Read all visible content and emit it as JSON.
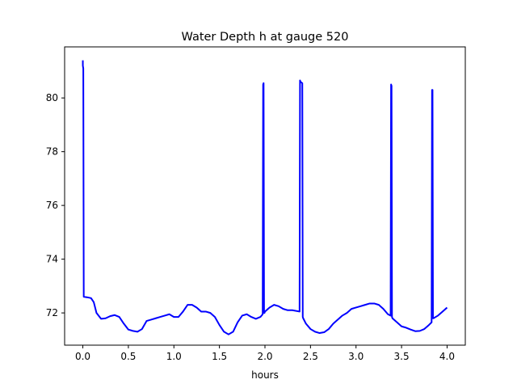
{
  "chart_data": {
    "type": "line",
    "title": "Water Depth h at gauge 520",
    "xlabel": "hours",
    "ylabel": "",
    "xlim": [
      -0.2,
      4.2
    ],
    "ylim": [
      70.8,
      81.9
    ],
    "xticks": [
      0.0,
      0.5,
      1.0,
      1.5,
      2.0,
      2.5,
      3.0,
      3.5,
      4.0
    ],
    "xtick_labels": [
      "0.0",
      "0.5",
      "1.0",
      "1.5",
      "2.0",
      "2.5",
      "3.0",
      "3.5",
      "4.0"
    ],
    "yticks": [
      72,
      74,
      76,
      78,
      80
    ],
    "ytick_labels": [
      "72",
      "74",
      "76",
      "78",
      "80"
    ],
    "grid": false,
    "series": [
      {
        "color": "#0000ff",
        "x": [
          0.0,
          0.0,
          0.005,
          0.01,
          0.01,
          0.05,
          0.09,
          0.12,
          0.15,
          0.2,
          0.25,
          0.3,
          0.35,
          0.4,
          0.45,
          0.5,
          0.55,
          0.6,
          0.65,
          0.7,
          0.75,
          0.8,
          0.85,
          0.9,
          0.95,
          1.0,
          1.05,
          1.1,
          1.15,
          1.2,
          1.25,
          1.3,
          1.35,
          1.4,
          1.45,
          1.5,
          1.55,
          1.6,
          1.65,
          1.7,
          1.75,
          1.8,
          1.85,
          1.9,
          1.95,
          1.975,
          1.98,
          1.985,
          1.99,
          1.995,
          2.0,
          2.05,
          2.1,
          2.15,
          2.2,
          2.25,
          2.3,
          2.38,
          2.385,
          2.39,
          2.41,
          2.415,
          2.42,
          2.45,
          2.5,
          2.55,
          2.6,
          2.65,
          2.7,
          2.75,
          2.8,
          2.85,
          2.9,
          2.95,
          3.0,
          3.05,
          3.1,
          3.15,
          3.2,
          3.25,
          3.3,
          3.35,
          3.38,
          3.385,
          3.39,
          3.395,
          3.4,
          3.45,
          3.5,
          3.55,
          3.6,
          3.65,
          3.7,
          3.75,
          3.8,
          3.83,
          3.835,
          3.84,
          3.845,
          3.85,
          3.9,
          3.95,
          4.0
        ],
        "values": [
          81.4,
          81.2,
          81.1,
          72.6,
          72.6,
          72.58,
          72.55,
          72.4,
          72.0,
          71.78,
          71.8,
          71.88,
          71.92,
          71.85,
          71.6,
          71.38,
          71.33,
          71.3,
          71.4,
          71.7,
          71.75,
          71.8,
          71.85,
          71.9,
          71.95,
          71.85,
          71.85,
          72.05,
          72.3,
          72.3,
          72.2,
          72.05,
          72.05,
          72.0,
          71.85,
          71.55,
          71.3,
          71.2,
          71.3,
          71.65,
          71.9,
          71.95,
          71.85,
          71.78,
          71.85,
          71.95,
          80.5,
          80.55,
          72.0,
          72.0,
          72.05,
          72.2,
          72.3,
          72.25,
          72.15,
          72.1,
          72.1,
          72.05,
          80.65,
          80.6,
          80.55,
          71.85,
          71.8,
          71.6,
          71.4,
          71.3,
          71.25,
          71.28,
          71.4,
          71.6,
          71.75,
          71.9,
          72.0,
          72.15,
          72.2,
          72.25,
          72.3,
          72.35,
          72.35,
          72.3,
          72.15,
          71.95,
          71.9,
          80.5,
          80.45,
          71.85,
          71.8,
          71.65,
          71.5,
          71.45,
          71.38,
          71.32,
          71.33,
          71.4,
          71.55,
          71.65,
          80.3,
          80.3,
          71.8,
          71.8,
          71.9,
          72.05,
          72.2
        ]
      }
    ]
  }
}
